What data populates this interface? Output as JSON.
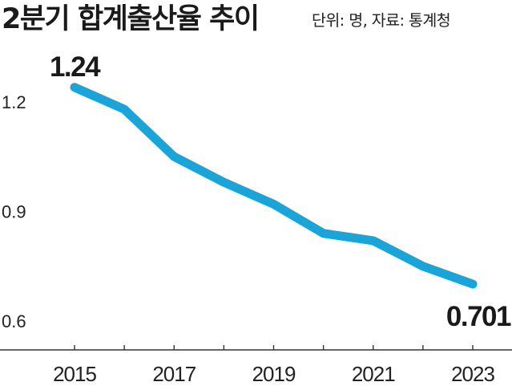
{
  "title": "2분기 합계출산율 추이",
  "source": "단위: 명, 자료: 통계청",
  "chart_data": {
    "type": "line",
    "title": "2분기 합계출산율 추이",
    "unit_note": "단위: 명, 자료: 통계청",
    "x": [
      2015,
      2016,
      2017,
      2018,
      2019,
      2020,
      2021,
      2022,
      2023
    ],
    "series": [
      {
        "values": [
          1.24,
          1.18,
          1.05,
          0.98,
          0.92,
          0.84,
          0.82,
          0.75,
          0.701
        ],
        "color": "#1ba4d8"
      }
    ],
    "x_tick_labels": [
      "2015",
      "2017",
      "2019",
      "2021",
      "2023"
    ],
    "y_tick_labels": [
      "1.2",
      "0.9",
      "0.6"
    ],
    "y_ticks": [
      1.2,
      0.9,
      0.6
    ],
    "data_labels": [
      {
        "x": 2015,
        "text": "1.24"
      },
      {
        "x": 2023,
        "text": "0.701"
      }
    ],
    "ylim": [
      0.575,
      1.3
    ],
    "xlim": [
      2014.2,
      2023.7
    ],
    "grid": false,
    "legend": "none"
  }
}
